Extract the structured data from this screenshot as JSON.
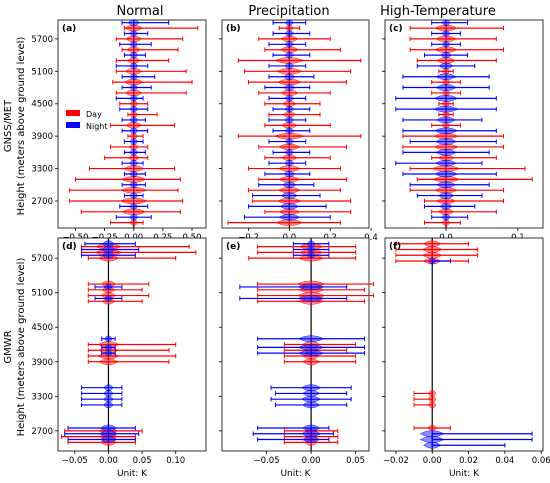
{
  "column_titles": [
    "Normal",
    "Precipitation",
    "High-Temperature"
  ],
  "row_labels": [
    [
      "GNSS/MET",
      "Height (meters above ground level)"
    ],
    [
      "GMWR",
      "Height (meters above ground level)"
    ]
  ],
  "xlabel": "Unit: K",
  "legend": {
    "day_label": "Day",
    "night_label": "Night",
    "day_color": "#ff0000",
    "night_color": "#0000ff"
  },
  "chart_data": [
    {
      "type": "violin",
      "panel_label": "(a)",
      "column": "Normal",
      "row": "GNSS/MET",
      "xlim": [
        -0.65,
        0.62
      ],
      "xticks": [
        -0.5,
        -0.25,
        0.0,
        0.25,
        0.5
      ],
      "xtick_labels": [
        "−0.50",
        "−0.25",
        "0.00",
        "0.25",
        "0.50"
      ],
      "yticks": [
        2700,
        3300,
        3900,
        4500,
        5100,
        5700
      ],
      "ylim": [
        2200,
        6050
      ],
      "legend_placement": "upper-left",
      "series": [
        {
          "name": "Day",
          "heights": [
            2300,
            2500,
            2700,
            2900,
            3100,
            3300,
            3500,
            3700,
            3900,
            4100,
            4300,
            4500,
            4700,
            4900,
            5100,
            5300,
            5500,
            5700,
            5900
          ],
          "min": [
            -0.2,
            -0.45,
            -0.55,
            -0.55,
            -0.5,
            -0.38,
            -0.25,
            -0.2,
            -0.05,
            -0.2,
            -0.05,
            -0.12,
            -0.15,
            -0.18,
            -0.15,
            -0.15,
            -0.1,
            -0.15,
            -0.08
          ],
          "max": [
            0.08,
            0.4,
            0.42,
            0.38,
            0.4,
            0.35,
            0.12,
            0.12,
            0.08,
            0.35,
            0.2,
            0.12,
            0.45,
            0.5,
            0.45,
            0.3,
            0.38,
            0.42,
            0.55
          ]
        },
        {
          "name": "Night",
          "heights": [
            2400,
            2600,
            2800,
            3000,
            3200,
            3400,
            3600,
            3800,
            4000,
            4200,
            4400,
            4600,
            4800,
            5000,
            5200,
            5400,
            5600,
            5800,
            6000
          ],
          "min": [
            -0.15,
            -0.12,
            -0.08,
            -0.1,
            -0.08,
            -0.1,
            -0.08,
            -0.08,
            -0.1,
            -0.1,
            -0.12,
            -0.15,
            -0.1,
            -0.1,
            -0.15,
            -0.08,
            -0.12,
            -0.08,
            -0.1
          ],
          "max": [
            0.15,
            0.12,
            0.08,
            0.1,
            0.1,
            0.08,
            0.1,
            0.08,
            0.12,
            0.1,
            0.12,
            0.08,
            0.15,
            0.18,
            0.12,
            0.1,
            0.15,
            0.12,
            0.3
          ]
        }
      ]
    },
    {
      "type": "violin",
      "panel_label": "(b)",
      "column": "Precipitation",
      "row": "GNSS/MET",
      "xlim": [
        -0.33,
        0.39
      ],
      "xticks": [
        -0.2,
        0.0,
        0.2,
        0.4
      ],
      "xtick_labels": [
        "−0.2",
        "0.0",
        "0.2",
        "0.4"
      ],
      "yticks": [
        2700,
        3300,
        3900,
        4500,
        5100,
        5700
      ],
      "ylim": [
        2200,
        6050
      ],
      "series": [
        {
          "name": "Day",
          "heights": [
            2300,
            2500,
            2700,
            2900,
            3100,
            3300,
            3500,
            3700,
            3900,
            4100,
            4300,
            4500,
            4700,
            4900,
            5100,
            5300,
            5500,
            5700,
            5900
          ],
          "min": [
            -0.3,
            -0.12,
            -0.18,
            -0.2,
            -0.15,
            -0.2,
            -0.12,
            -0.15,
            -0.25,
            -0.12,
            -0.1,
            -0.12,
            -0.15,
            -0.2,
            -0.22,
            -0.25,
            -0.12,
            -0.15,
            -0.05
          ],
          "max": [
            0.25,
            0.3,
            0.3,
            0.25,
            0.28,
            0.25,
            0.2,
            0.28,
            0.35,
            0.2,
            0.15,
            0.15,
            0.2,
            0.28,
            0.3,
            0.35,
            0.25,
            0.2,
            0.05
          ]
        },
        {
          "name": "Night",
          "heights": [
            2400,
            2600,
            2800,
            3000,
            3200,
            3400,
            3600,
            3800,
            4000,
            4200,
            4400,
            4600,
            4800,
            5000,
            5200,
            5400,
            5600,
            5800,
            6000
          ],
          "min": [
            -0.22,
            -0.2,
            -0.18,
            -0.15,
            -0.12,
            -0.1,
            -0.08,
            -0.1,
            -0.08,
            -0.1,
            -0.08,
            -0.1,
            -0.12,
            -0.1,
            -0.1,
            -0.08,
            -0.1,
            -0.08,
            -0.08
          ],
          "max": [
            0.2,
            0.18,
            0.15,
            0.12,
            0.1,
            0.08,
            0.1,
            0.08,
            0.1,
            0.08,
            0.1,
            0.08,
            0.1,
            0.12,
            0.08,
            0.1,
            0.08,
            0.1,
            0.08
          ]
        }
      ]
    },
    {
      "type": "violin",
      "panel_label": "(c)",
      "column": "High-Temperature",
      "row": "GNSS/MET",
      "xlim": [
        -0.085,
        0.135
      ],
      "xticks": [
        0.0,
        0.1
      ],
      "xtick_labels": [
        "0.0",
        "0.1"
      ],
      "yticks": [
        2700,
        3300,
        3900,
        4500,
        5100,
        5700
      ],
      "ylim": [
        2200,
        6050
      ],
      "series": [
        {
          "name": "Day",
          "heights": [
            2300,
            2500,
            2700,
            2900,
            3100,
            3300,
            3500,
            3700,
            3900,
            4100,
            4300,
            4500,
            4700,
            4900,
            5100,
            5300,
            5500,
            5700,
            5900
          ],
          "min": [
            -0.03,
            -0.02,
            -0.03,
            -0.05,
            -0.04,
            -0.05,
            -0.02,
            -0.06,
            -0.06,
            -0.02,
            -0.01,
            -0.01,
            -0.02,
            -0.02,
            -0.01,
            -0.04,
            -0.05,
            -0.05,
            -0.05
          ],
          "max": [
            0.02,
            0.07,
            0.08,
            0.08,
            0.12,
            0.11,
            0.07,
            0.08,
            0.08,
            0.02,
            0.01,
            0.01,
            0.02,
            0.02,
            0.01,
            0.07,
            0.08,
            0.07,
            0.08
          ]
        },
        {
          "name": "Night",
          "heights": [
            2400,
            2600,
            2800,
            3000,
            3200,
            3400,
            3600,
            3800,
            4000,
            4200,
            4400,
            4600,
            4800,
            5000,
            5200,
            5400,
            5600,
            5800,
            6000
          ],
          "min": [
            -0.02,
            -0.03,
            -0.04,
            -0.05,
            -0.06,
            -0.07,
            -0.06,
            -0.05,
            -0.06,
            -0.06,
            -0.07,
            -0.07,
            -0.06,
            -0.06,
            -0.04,
            -0.03,
            -0.02,
            -0.02,
            -0.02
          ],
          "max": [
            0.03,
            0.04,
            0.05,
            0.06,
            0.07,
            0.05,
            0.06,
            0.07,
            0.07,
            0.05,
            0.07,
            0.07,
            0.06,
            0.06,
            0.04,
            0.03,
            0.02,
            0.02,
            0.03
          ]
        }
      ]
    },
    {
      "type": "violin",
      "panel_label": "(d)",
      "column": "Normal",
      "row": "GMWR",
      "xlim": [
        -0.075,
        0.145
      ],
      "xticks": [
        -0.05,
        0.0,
        0.05,
        0.1
      ],
      "xtick_labels": [
        "−0.05",
        "0.00",
        "0.05",
        "0.10"
      ],
      "yticks": [
        2700,
        3300,
        3900,
        4500,
        5100,
        5700
      ],
      "ylim": [
        2350,
        6050
      ],
      "series": [
        {
          "name": "Day",
          "heights": [
            2500,
            2600,
            2700,
            3900,
            4000,
            4100,
            4200,
            4950,
            5050,
            5150,
            5250,
            5700,
            5800,
            5900
          ],
          "min": [
            -0.06,
            -0.07,
            -0.065,
            -0.03,
            -0.03,
            -0.03,
            -0.03,
            -0.03,
            -0.03,
            -0.03,
            -0.03,
            -0.03,
            -0.04,
            -0.04
          ],
          "max": [
            0.04,
            0.04,
            0.05,
            0.09,
            0.1,
            0.09,
            0.1,
            0.05,
            0.06,
            0.05,
            0.06,
            0.1,
            0.13,
            0.12
          ]
        },
        {
          "name": "Night",
          "heights": [
            2550,
            2650,
            2750,
            3150,
            3250,
            3350,
            3450,
            4050,
            4150,
            4300,
            5000,
            5200,
            5750,
            5850,
            5950
          ],
          "min": [
            -0.06,
            -0.065,
            -0.06,
            -0.04,
            -0.04,
            -0.04,
            -0.04,
            -0.01,
            -0.01,
            -0.01,
            -0.02,
            -0.02,
            -0.04,
            -0.04,
            -0.035
          ],
          "max": [
            0.04,
            0.045,
            0.04,
            0.02,
            0.02,
            0.02,
            0.02,
            0.01,
            0.01,
            0.01,
            0.02,
            0.02,
            0.04,
            0.045,
            0.04
          ]
        }
      ]
    },
    {
      "type": "violin",
      "panel_label": "(e)",
      "column": "Precipitation",
      "row": "GMWR",
      "xlim": [
        -0.1,
        0.065
      ],
      "xticks": [
        -0.05,
        0.0,
        0.05
      ],
      "xtick_labels": [
        "−0.05",
        "0.00",
        "0.05"
      ],
      "yticks": [
        2700,
        3300,
        3900,
        4500,
        5100,
        5700
      ],
      "ylim": [
        2350,
        6050
      ],
      "series": [
        {
          "name": "Day",
          "heights": [
            2500,
            2600,
            2700,
            3900,
            4000,
            4100,
            4200,
            4950,
            5050,
            5150,
            5250,
            5700,
            5800,
            5900
          ],
          "min": [
            -0.03,
            -0.03,
            -0.03,
            -0.03,
            -0.03,
            -0.03,
            -0.03,
            -0.06,
            -0.06,
            -0.06,
            -0.06,
            -0.07,
            -0.06,
            -0.06
          ],
          "max": [
            0.03,
            0.03,
            0.03,
            0.05,
            0.05,
            0.04,
            0.05,
            0.06,
            0.07,
            0.06,
            0.07,
            0.05,
            0.05,
            0.05
          ]
        },
        {
          "name": "Night",
          "heights": [
            2550,
            2650,
            2750,
            3150,
            3250,
            3350,
            3450,
            4050,
            4150,
            4300,
            5000,
            5200,
            5750,
            5850,
            5950
          ],
          "min": [
            -0.06,
            -0.065,
            -0.06,
            -0.04,
            -0.045,
            -0.04,
            -0.045,
            -0.06,
            -0.06,
            -0.06,
            -0.08,
            -0.08,
            -0.02,
            -0.02,
            -0.02
          ],
          "max": [
            0.02,
            0.025,
            0.02,
            0.04,
            0.045,
            0.04,
            0.045,
            0.06,
            0.06,
            0.06,
            0.04,
            0.04,
            0.02,
            0.02,
            0.02
          ]
        }
      ]
    },
    {
      "type": "violin",
      "panel_label": "(f)",
      "column": "High-Temperature",
      "row": "GMWR",
      "xlim": [
        -0.026,
        0.061
      ],
      "xticks": [
        -0.02,
        0.0,
        0.02,
        0.04,
        0.06
      ],
      "xtick_labels": [
        "−0.02",
        "0.00",
        "0.02",
        "0.04",
        "0.06"
      ],
      "yticks": [
        2700,
        3300,
        3900,
        4500,
        5100,
        5700
      ],
      "ylim": [
        2350,
        6050
      ],
      "series": [
        {
          "name": "Day",
          "heights": [
            2750,
            3150,
            3250,
            3350,
            5650,
            5750,
            5850,
            5950
          ],
          "min": [
            -0.01,
            -0.01,
            -0.01,
            -0.01,
            -0.02,
            -0.02,
            -0.02,
            -0.02
          ],
          "max": [
            0.01,
            0.0,
            0.0,
            0.0,
            0.02,
            0.025,
            0.025,
            0.02
          ]
        },
        {
          "name": "Night",
          "heights": [
            2450,
            2550,
            2650,
            5650
          ],
          "min": [
            0.0,
            0.0,
            0.0,
            0.0
          ],
          "max": [
            0.04,
            0.055,
            0.055,
            0.01
          ]
        }
      ]
    }
  ]
}
